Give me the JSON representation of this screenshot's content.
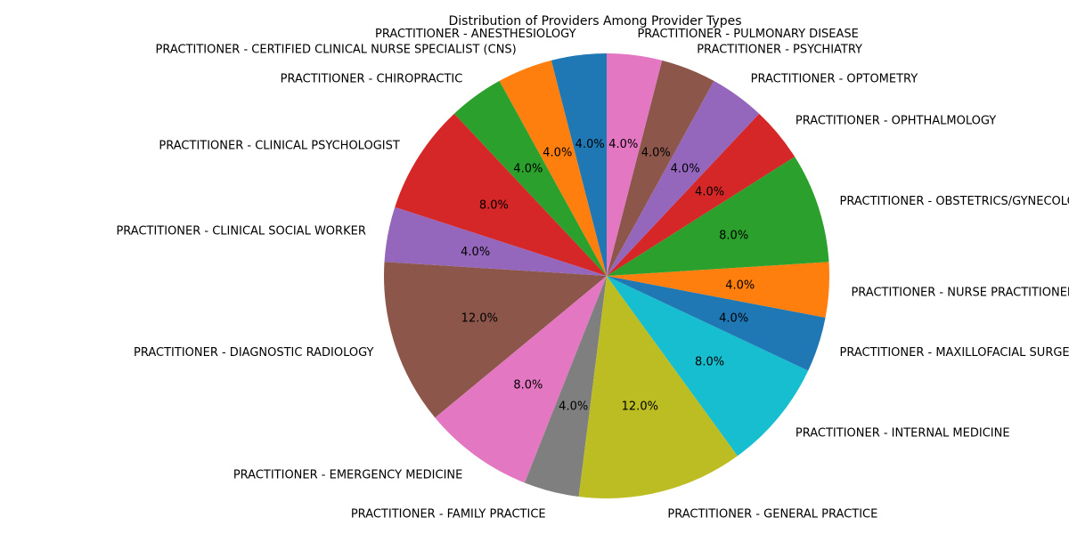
{
  "chart_data": {
    "type": "pie",
    "title": "Distribution of Providers Among Provider Types",
    "start_angle_deg": 90,
    "direction": "counterclockwise",
    "slices": [
      {
        "label": "PRACTITIONER - ANESTHESIOLOGY",
        "percent": 4.0,
        "display": "4.0%",
        "color": "#1f77b4"
      },
      {
        "label": "PRACTITIONER - CERTIFIED CLINICAL NURSE SPECIALIST (CNS)",
        "percent": 4.0,
        "display": "4.0%",
        "color": "#ff7f0e"
      },
      {
        "label": "PRACTITIONER - CHIROPRACTIC",
        "percent": 4.0,
        "display": "4.0%",
        "color": "#2ca02c"
      },
      {
        "label": "PRACTITIONER - CLINICAL PSYCHOLOGIST",
        "percent": 8.0,
        "display": "8.0%",
        "color": "#d62728"
      },
      {
        "label": "PRACTITIONER - CLINICAL SOCIAL WORKER",
        "percent": 4.0,
        "display": "4.0%",
        "color": "#9467bd"
      },
      {
        "label": "PRACTITIONER - DIAGNOSTIC RADIOLOGY",
        "percent": 12.0,
        "display": "12.0%",
        "color": "#8c564b"
      },
      {
        "label": "PRACTITIONER - EMERGENCY MEDICINE",
        "percent": 8.0,
        "display": "8.0%",
        "color": "#e377c2"
      },
      {
        "label": "PRACTITIONER - FAMILY PRACTICE",
        "percent": 4.0,
        "display": "4.0%",
        "color": "#7f7f7f"
      },
      {
        "label": "PRACTITIONER - GENERAL PRACTICE",
        "percent": 12.0,
        "display": "12.0%",
        "color": "#bcbd22"
      },
      {
        "label": "PRACTITIONER - INTERNAL MEDICINE",
        "percent": 8.0,
        "display": "8.0%",
        "color": "#17becf"
      },
      {
        "label": "PRACTITIONER - MAXILLOFACIAL SURGERY",
        "percent": 4.0,
        "display": "4.0%",
        "color": "#1f77b4"
      },
      {
        "label": "PRACTITIONER - NURSE PRACTITIONER",
        "percent": 4.0,
        "display": "4.0%",
        "color": "#ff7f0e"
      },
      {
        "label": "PRACTITIONER - OBSTETRICS/GYNECOLOGY",
        "percent": 8.0,
        "display": "8.0%",
        "color": "#2ca02c"
      },
      {
        "label": "PRACTITIONER - OPHTHALMOLOGY",
        "percent": 4.0,
        "display": "4.0%",
        "color": "#d62728"
      },
      {
        "label": "PRACTITIONER - OPTOMETRY",
        "percent": 4.0,
        "display": "4.0%",
        "color": "#9467bd"
      },
      {
        "label": "PRACTITIONER - PSYCHIATRY",
        "percent": 4.0,
        "display": "4.0%",
        "color": "#8c564b"
      },
      {
        "label": "PRACTITIONER - PULMONARY DISEASE",
        "percent": 4.0,
        "display": "4.0%",
        "color": "#e377c2"
      }
    ]
  }
}
